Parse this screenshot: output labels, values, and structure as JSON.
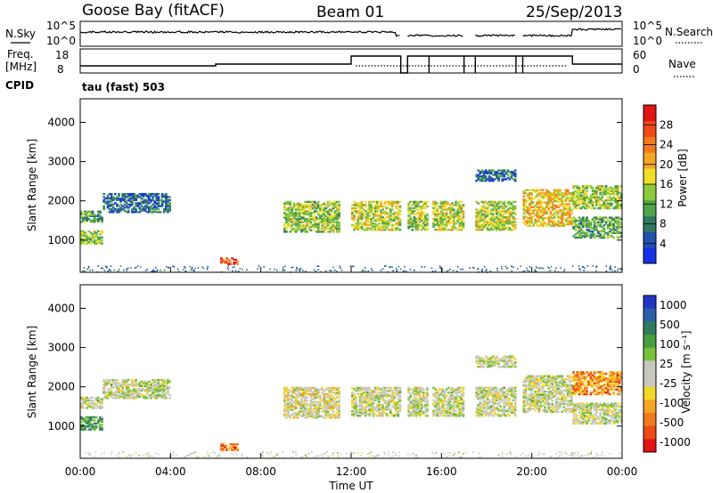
{
  "header": {
    "station": "Goose Bay (fitACF)",
    "beam": "Beam 01",
    "date": "25/Sep/2013"
  },
  "top_panels": {
    "nsky_label": "N.Sky",
    "nsearch_label": "N.Search",
    "count_ticks": [
      "10^5",
      "10^0"
    ],
    "freq_label_line1": "Freq.",
    "freq_label_line2": "[MHz]",
    "freq_ticks": [
      "18",
      "8"
    ],
    "nave_label": "Nave",
    "nave_ticks": [
      "60",
      "0"
    ],
    "cpid_label": "CPID",
    "cpid_text": "tau (fast) 503"
  },
  "axes": {
    "xlabel": "Time UT",
    "xticks": [
      "00:00",
      "04:00",
      "08:00",
      "12:00",
      "16:00",
      "20:00",
      "00:00"
    ],
    "ylabel": "Slant Range [km]",
    "yticks": [
      "1000",
      "2000",
      "3000",
      "4000"
    ]
  },
  "colorbars": {
    "power": {
      "label": "Power [dB]",
      "ticks": [
        "4",
        "8",
        "12",
        "16",
        "20",
        "24",
        "28"
      ],
      "colors": [
        "#1530e6",
        "#2450b0",
        "#2f7a62",
        "#4fa64a",
        "#8cc93c",
        "#f0df2a",
        "#f5a623",
        "#f27a1c",
        "#ef4a18",
        "#e31414"
      ]
    },
    "velocity": {
      "label": "Velocity [m s⁻¹]",
      "ticks": [
        "1000",
        "500",
        "100",
        "25",
        "-25",
        "-100",
        "-500",
        "-1000"
      ],
      "colors": [
        "#2236c4",
        "#2a5fa8",
        "#2f7d5d",
        "#47a040",
        "#79c13a",
        "#c8c8c0",
        "#c8c8c0",
        "#f2d82a",
        "#f5a623",
        "#f07a1c",
        "#ec4b18",
        "#e31414"
      ]
    }
  },
  "chart_data": [
    {
      "type": "heatmap",
      "name": "power",
      "x_range": [
        0,
        24
      ],
      "y_range": [
        180,
        4600
      ],
      "bands": [
        {
          "t0": 0.0,
          "t1": 1.0,
          "r0": 1450,
          "r1": 1750,
          "v": 0.35
        },
        {
          "t0": 0.0,
          "t1": 1.0,
          "r0": 900,
          "r1": 1250,
          "v": 0.45
        },
        {
          "t0": 1.0,
          "t1": 4.0,
          "r0": 1700,
          "r1": 2200,
          "v": 0.2
        },
        {
          "t0": 6.2,
          "t1": 7.0,
          "r0": 380,
          "r1": 560,
          "v": 0.9
        },
        {
          "t0": 9.0,
          "t1": 11.5,
          "r0": 1200,
          "r1": 2000,
          "v": 0.45
        },
        {
          "t0": 12.0,
          "t1": 14.2,
          "r0": 1250,
          "r1": 2000,
          "v": 0.5
        },
        {
          "t0": 14.5,
          "t1": 15.4,
          "r0": 1250,
          "r1": 2000,
          "v": 0.45
        },
        {
          "t0": 15.6,
          "t1": 17.0,
          "r0": 1250,
          "r1": 2000,
          "v": 0.5
        },
        {
          "t0": 17.5,
          "t1": 19.3,
          "r0": 1250,
          "r1": 2000,
          "v": 0.5
        },
        {
          "t0": 17.5,
          "t1": 19.3,
          "r0": 2500,
          "r1": 2800,
          "v": 0.2
        },
        {
          "t0": 19.6,
          "t1": 21.8,
          "r0": 1350,
          "r1": 2300,
          "v": 0.6
        },
        {
          "t0": 21.8,
          "t1": 24.0,
          "r0": 1050,
          "r1": 1600,
          "v": 0.35
        },
        {
          "t0": 21.8,
          "t1": 24.0,
          "r0": 1800,
          "r1": 2400,
          "v": 0.45
        }
      ]
    },
    {
      "type": "heatmap",
      "name": "velocity",
      "x_range": [
        0,
        24
      ],
      "y_range": [
        180,
        4600
      ],
      "bands": [
        {
          "t0": 0.0,
          "t1": 1.0,
          "r0": 1450,
          "r1": 1750,
          "v": 0.5
        },
        {
          "t0": 0.0,
          "t1": 1.0,
          "r0": 900,
          "r1": 1250,
          "v": 0.3
        },
        {
          "t0": 1.0,
          "t1": 4.0,
          "r0": 1700,
          "r1": 2200,
          "v": 0.5
        },
        {
          "t0": 6.2,
          "t1": 7.0,
          "r0": 380,
          "r1": 560,
          "v": 0.8
        },
        {
          "t0": 9.0,
          "t1": 11.5,
          "r0": 1200,
          "r1": 2000,
          "v": 0.55
        },
        {
          "t0": 12.0,
          "t1": 14.2,
          "r0": 1250,
          "r1": 2000,
          "v": 0.5
        },
        {
          "t0": 14.5,
          "t1": 15.4,
          "r0": 1250,
          "r1": 2000,
          "v": 0.5
        },
        {
          "t0": 15.6,
          "t1": 17.0,
          "r0": 1250,
          "r1": 2000,
          "v": 0.5
        },
        {
          "t0": 17.5,
          "t1": 19.3,
          "r0": 1250,
          "r1": 2000,
          "v": 0.5
        },
        {
          "t0": 17.5,
          "t1": 19.3,
          "r0": 2500,
          "r1": 2800,
          "v": 0.5
        },
        {
          "t0": 19.6,
          "t1": 21.8,
          "r0": 1350,
          "r1": 2300,
          "v": 0.5
        },
        {
          "t0": 21.8,
          "t1": 24.0,
          "r0": 1050,
          "r1": 1600,
          "v": 0.5
        },
        {
          "t0": 21.8,
          "t1": 24.0,
          "r0": 1800,
          "r1": 2400,
          "v": 0.75
        }
      ]
    }
  ]
}
